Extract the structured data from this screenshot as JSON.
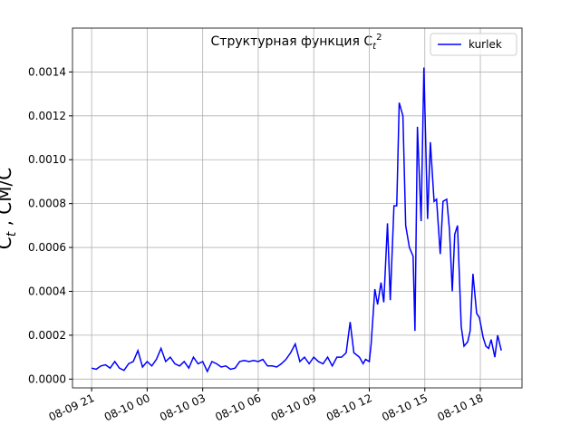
{
  "chart_data": {
    "type": "line",
    "title": {
      "text": "Структурная функция C",
      "sub": "t",
      "sup": "2"
    },
    "ylabel": {
      "text": "C",
      "sub": "t",
      "rest": " , СМ/С"
    },
    "x": [
      "08-09 21:00",
      "08-09 21:15",
      "08-09 21:30",
      "08-09 21:45",
      "08-09 22:00",
      "08-09 22:15",
      "08-09 22:30",
      "08-09 22:45",
      "08-09 23:00",
      "08-09 23:15",
      "08-09 23:30",
      "08-09 23:45",
      "08-10 00:00",
      "08-10 00:15",
      "08-10 00:30",
      "08-10 00:45",
      "08-10 01:00",
      "08-10 01:15",
      "08-10 01:30",
      "08-10 01:45",
      "08-10 02:00",
      "08-10 02:15",
      "08-10 02:30",
      "08-10 02:45",
      "08-10 03:00",
      "08-10 03:15",
      "08-10 03:30",
      "08-10 03:45",
      "08-10 04:00",
      "08-10 04:15",
      "08-10 04:30",
      "08-10 04:45",
      "08-10 05:00",
      "08-10 05:15",
      "08-10 05:30",
      "08-10 05:45",
      "08-10 06:00",
      "08-10 06:15",
      "08-10 06:30",
      "08-10 06:45",
      "08-10 07:00",
      "08-10 07:15",
      "08-10 07:30",
      "08-10 07:45",
      "08-10 08:00",
      "08-10 08:15",
      "08-10 08:30",
      "08-10 08:45",
      "08-10 09:00",
      "08-10 09:15",
      "08-10 09:30",
      "08-10 09:45",
      "08-10 10:00",
      "08-10 10:15",
      "08-10 10:30",
      "08-10 10:45",
      "08-10 10:58",
      "08-10 11:10",
      "08-10 11:28",
      "08-10 11:40",
      "08-10 11:48",
      "08-10 12:00",
      "08-10 12:06",
      "08-10 12:18",
      "08-10 12:27",
      "08-10 12:38",
      "08-10 12:47",
      "08-10 12:59",
      "08-10 13:08",
      "08-10 13:20",
      "08-10 13:29",
      "08-10 13:37",
      "08-10 13:49",
      "08-10 13:58",
      "08-10 14:10",
      "08-10 14:22",
      "08-10 14:28",
      "08-10 14:36",
      "08-10 14:48",
      "08-10 14:57",
      "08-10 15:09",
      "08-10 15:18",
      "08-10 15:30",
      "08-10 15:38",
      "08-10 15:50",
      "08-10 15:59",
      "08-10 16:11",
      "08-10 16:20",
      "08-10 16:29",
      "08-10 16:37",
      "08-10 16:46",
      "08-10 16:58",
      "08-10 17:07",
      "08-10 17:19",
      "08-10 17:27",
      "08-10 17:36",
      "08-10 17:48",
      "08-10 17:57",
      "08-10 18:09",
      "08-10 18:18",
      "08-10 18:27",
      "08-10 18:35",
      "08-10 18:47",
      "08-10 18:56",
      "08-10 19:08"
    ],
    "series": [
      {
        "name": "kurlek",
        "color": "#0000ff",
        "values": [
          5e-05,
          4.5e-05,
          6e-05,
          6.5e-05,
          5e-05,
          8e-05,
          5e-05,
          4e-05,
          7e-05,
          8e-05,
          0.00013,
          5.5e-05,
          8e-05,
          6e-05,
          9e-05,
          0.00014,
          8e-05,
          0.0001,
          7e-05,
          6e-05,
          8e-05,
          5e-05,
          0.0001,
          7e-05,
          8e-05,
          3.5e-05,
          8e-05,
          7e-05,
          5.5e-05,
          6e-05,
          4.5e-05,
          5e-05,
          8e-05,
          8.5e-05,
          8e-05,
          8.5e-05,
          8e-05,
          9e-05,
          6e-05,
          6e-05,
          5.5e-05,
          7e-05,
          9e-05,
          0.00012,
          0.00016,
          8e-05,
          0.0001,
          7e-05,
          0.0001,
          8e-05,
          7e-05,
          0.0001,
          6e-05,
          0.0001,
          0.0001,
          0.00012,
          0.00026,
          0.00012,
          0.0001,
          7e-05,
          9e-05,
          8e-05,
          0.00016,
          0.00041,
          0.00034,
          0.00044,
          0.00035,
          0.00071,
          0.00036,
          0.00079,
          0.00079,
          0.00126,
          0.0012,
          0.0007,
          0.0006,
          0.00056,
          0.00022,
          0.00115,
          0.00072,
          0.00142,
          0.00073,
          0.00108,
          0.00081,
          0.00082,
          0.00057,
          0.00081,
          0.00082,
          0.00068,
          0.0004,
          0.00066,
          0.0007,
          0.00024,
          0.00015,
          0.00017,
          0.00022,
          0.00048,
          0.0003,
          0.00028,
          0.00019,
          0.00015,
          0.00014,
          0.00018,
          0.0001,
          0.0002,
          0.00013
        ]
      }
    ],
    "xlim": [
      "08-09 19:58",
      "08-10 20:15"
    ],
    "xticks": [
      "08-09 21",
      "08-10 00",
      "08-10 03",
      "08-10 06",
      "08-10 09",
      "08-10 12",
      "08-10 15",
      "08-10 18"
    ],
    "ylim": [
      -4e-05,
      0.0016
    ],
    "yticks": [
      {
        "value": 0,
        "label": "0.0000"
      },
      {
        "value": 0.0002,
        "label": "0.0002"
      },
      {
        "value": 0.0004,
        "label": "0.0004"
      },
      {
        "value": 0.0006,
        "label": "0.0006"
      },
      {
        "value": 0.0008,
        "label": "0.0008"
      },
      {
        "value": 0.001,
        "label": "0.0010"
      },
      {
        "value": 0.0012,
        "label": "0.0012"
      },
      {
        "value": 0.0014,
        "label": "0.0014"
      }
    ],
    "grid": true,
    "legend": "upper right"
  }
}
